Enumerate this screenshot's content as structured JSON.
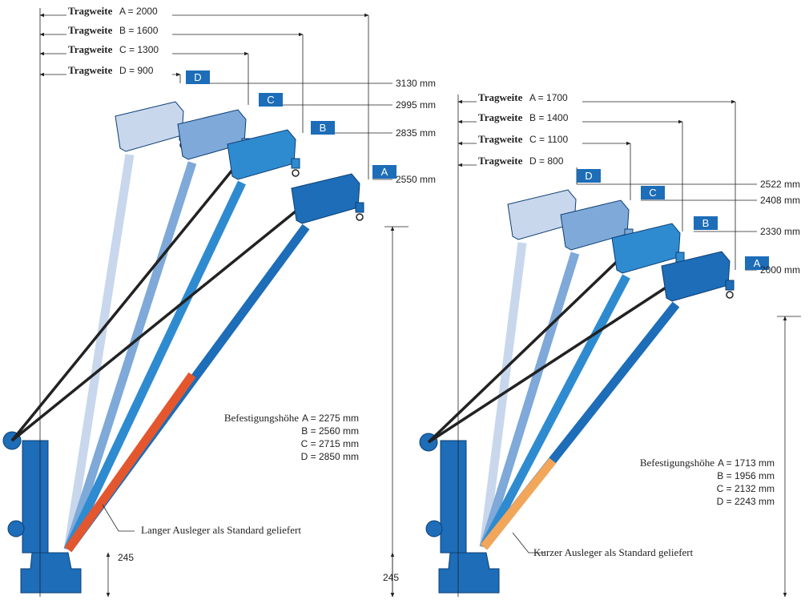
{
  "left": {
    "reach": [
      {
        "word": "Tragweite",
        "value": "A = 2000"
      },
      {
        "word": "Tragweite",
        "value": "B = 1600"
      },
      {
        "word": "Tragweite",
        "value": "C = 1300"
      },
      {
        "word": "Tragweite",
        "value": "D = 900"
      }
    ],
    "heights": [
      {
        "tag": "D",
        "value": "3130 mm"
      },
      {
        "tag": "C",
        "value": "2995 mm"
      },
      {
        "tag": "B",
        "value": "2835 mm"
      },
      {
        "tag": "A",
        "value": "2550 mm"
      }
    ],
    "mount_label": "Befestigungshöhe",
    "mount": [
      "A = 2275 mm",
      "B = 2560 mm",
      "C = 2715 mm",
      "D = 2850 mm"
    ],
    "note": "Langer Ausleger als Standard geliefert",
    "base_height": "245"
  },
  "right": {
    "reach": [
      {
        "word": "Tragweite",
        "value": "A = 1700"
      },
      {
        "word": "Tragweite",
        "value": "B = 1400"
      },
      {
        "word": "Tragweite",
        "value": "C = 1100"
      },
      {
        "word": "Tragweite",
        "value": "D = 800"
      }
    ],
    "heights": [
      {
        "tag": "D",
        "value": "2522 mm"
      },
      {
        "tag": "C",
        "value": "2408 mm"
      },
      {
        "tag": "B",
        "value": "2330 mm"
      },
      {
        "tag": "A",
        "value": "2000 mm"
      }
    ],
    "mount_label": "Befestigungshöhe",
    "mount": [
      "A = 1713 mm",
      "B = 1956 mm",
      "C = 2132 mm",
      "D = 2243 mm"
    ],
    "note": "Kurzer Ausleger als Standard geliefert",
    "base_height": "245"
  }
}
